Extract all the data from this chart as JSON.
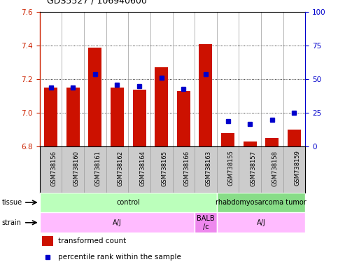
{
  "title": "GDS5527 / 106940600",
  "samples": [
    "GSM738156",
    "GSM738160",
    "GSM738161",
    "GSM738162",
    "GSM738164",
    "GSM738165",
    "GSM738166",
    "GSM738163",
    "GSM738155",
    "GSM738157",
    "GSM738158",
    "GSM738159"
  ],
  "red_values": [
    7.15,
    7.15,
    7.39,
    7.15,
    7.14,
    7.27,
    7.13,
    7.41,
    6.88,
    6.83,
    6.85,
    6.9
  ],
  "blue_values": [
    44,
    44,
    54,
    46,
    45,
    51,
    43,
    54,
    19,
    17,
    20,
    25
  ],
  "ylim_left": [
    6.8,
    7.6
  ],
  "ylim_right": [
    0,
    100
  ],
  "yticks_left": [
    6.8,
    7.0,
    7.2,
    7.4,
    7.6
  ],
  "yticks_right": [
    0,
    25,
    50,
    75,
    100
  ],
  "bar_color": "#cc1100",
  "dot_color": "#0000cc",
  "plot_bg": "#ffffff",
  "tissue_groups": [
    {
      "label": "control",
      "start": 0,
      "end": 8,
      "color": "#bbffbb"
    },
    {
      "label": "rhabdomyosarcoma tumor",
      "start": 8,
      "end": 12,
      "color": "#88dd88"
    }
  ],
  "strain_groups": [
    {
      "label": "A/J",
      "start": 0,
      "end": 7,
      "color": "#ffbbff"
    },
    {
      "label": "BALB\n/c",
      "start": 7,
      "end": 8,
      "color": "#ee88ee"
    },
    {
      "label": "A/J",
      "start": 8,
      "end": 12,
      "color": "#ffbbff"
    }
  ],
  "legend_items": [
    {
      "label": "transformed count",
      "color": "#cc1100"
    },
    {
      "label": "percentile rank within the sample",
      "color": "#0000cc"
    }
  ],
  "tissue_label": "tissue",
  "strain_label": "strain",
  "left_axis_color": "#cc2200",
  "right_axis_color": "#0000cc",
  "bar_bottom": 6.8,
  "xtick_bg": "#cccccc",
  "separator_color": "#999999"
}
